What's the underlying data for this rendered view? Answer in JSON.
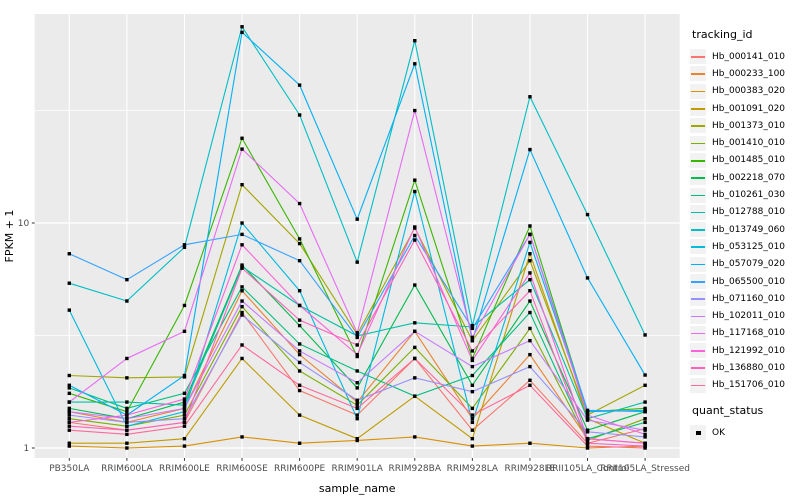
{
  "figure": {
    "background": "#FFFFFF",
    "panel_background": "#EBEBEB",
    "grid_color": "#FFFFFF",
    "axis_text_color": "#4D4D4D",
    "axis_title_color": "#000000",
    "tick_color": "#333333",
    "point_color": "#000000"
  },
  "axes": {
    "x_title": "sample_name",
    "y_title": "FPKM + 1",
    "y_tick_labels": [
      "1",
      "10"
    ]
  },
  "legend": {
    "tracking_title": "tracking_id",
    "quant_title": "quant_status",
    "quant_item_label": "OK",
    "quant_key_icon": "black-square-point"
  },
  "chart_data": {
    "type": "line",
    "title": "",
    "xlabel": "sample_name",
    "ylabel": "FPKM + 1",
    "y_scale": "log10",
    "ylim": [
      1,
      85
    ],
    "y_major_ticks": [
      1,
      10
    ],
    "y_minor_gridlines": [
      3.162,
      31.62
    ],
    "grid": true,
    "legend_position": "right",
    "point_marker": "filled-black-square",
    "categories": [
      "PB350LA",
      "RRIM600LA",
      "RRIM600LE",
      "RRIM600SE",
      "RRIM600PE",
      "RRIM901LA",
      "RRIM928BA",
      "RRIM928LA",
      "RRIM928LE",
      "RRII105LA_Control",
      "RRII105LA_Stressed"
    ],
    "series": [
      {
        "name": "Hb_000141_010",
        "color": "#F8766D",
        "values": [
          1.3,
          1.2,
          1.3,
          4.0,
          1.8,
          1.4,
          2.5,
          1.2,
          2.0,
          1.05,
          1.22
        ]
      },
      {
        "name": "Hb_000233_100",
        "color": "#EA8331",
        "values": [
          1.45,
          1.3,
          1.5,
          5.0,
          2.6,
          1.6,
          3.3,
          1.35,
          2.6,
          1.1,
          1.05
        ]
      },
      {
        "name": "Hb_000383_020",
        "color": "#D89000",
        "values": [
          1.02,
          1.0,
          1.02,
          1.12,
          1.05,
          1.08,
          1.12,
          1.02,
          1.05,
          1.0,
          1.02
        ]
      },
      {
        "name": "Hb_001091_020",
        "color": "#C09B00",
        "values": [
          1.05,
          1.05,
          1.1,
          2.5,
          1.4,
          1.1,
          1.7,
          1.1,
          7.3,
          1.35,
          1.05
        ]
      },
      {
        "name": "Hb_001373_010",
        "color": "#A3A500",
        "values": [
          2.1,
          2.05,
          2.07,
          14.8,
          8.1,
          3.2,
          9.5,
          3.0,
          6.8,
          1.4,
          1.9
        ]
      },
      {
        "name": "Hb_001410_010",
        "color": "#7CAE00",
        "values": [
          1.35,
          1.25,
          1.4,
          4.25,
          2.2,
          1.55,
          2.8,
          1.5,
          3.4,
          1.08,
          1.35
        ]
      },
      {
        "name": "Hb_001485_010",
        "color": "#39B600",
        "values": [
          1.75,
          1.45,
          4.3,
          23.8,
          8.5,
          2.55,
          15.5,
          2.5,
          9.7,
          1.45,
          1.5
        ]
      },
      {
        "name": "Hb_002218_070",
        "color": "#00BB4E",
        "values": [
          1.5,
          1.35,
          1.6,
          6.5,
          3.5,
          1.85,
          5.3,
          1.9,
          4.5,
          1.2,
          1.45
        ]
      },
      {
        "name": "Hb_010261_030",
        "color": "#00BF7D",
        "values": [
          1.85,
          1.5,
          1.75,
          5.2,
          2.9,
          2.2,
          1.7,
          2.1,
          4.0,
          1.1,
          1.3
        ]
      },
      {
        "name": "Hb_012788_010",
        "color": "#00C1A3",
        "values": [
          1.6,
          1.6,
          1.55,
          6.4,
          4.3,
          3.15,
          3.6,
          3.45,
          5.6,
          1.35,
          1.6
        ]
      },
      {
        "name": "Hb_013749_060",
        "color": "#00BFC4",
        "values": [
          5.4,
          4.5,
          7.8,
          74.5,
          30.2,
          6.7,
          64.6,
          3.5,
          36.4,
          10.9,
          3.18
        ]
      },
      {
        "name": "Hb_053125_010",
        "color": "#00BAE0",
        "values": [
          4.1,
          1.25,
          1.45,
          10.0,
          5.0,
          1.35,
          13.8,
          1.3,
          8.2,
          1.45,
          1.47
        ]
      },
      {
        "name": "Hb_057079_020",
        "color": "#00B0F6",
        "values": [
          1.9,
          1.4,
          2.1,
          70.4,
          41.0,
          10.4,
          51.0,
          3.0,
          21.2,
          5.7,
          2.11
        ]
      },
      {
        "name": "Hb_065500_010",
        "color": "#35A2FF",
        "values": [
          7.3,
          5.6,
          8.0,
          8.9,
          6.8,
          3.1,
          8.8,
          3.4,
          8.9,
          1.47,
          1.45
        ]
      },
      {
        "name": "Hb_071160_010",
        "color": "#9590FF",
        "values": [
          1.4,
          1.3,
          1.35,
          3.9,
          2.4,
          1.63,
          2.05,
          1.78,
          2.3,
          1.18,
          1.12
        ]
      },
      {
        "name": "Hb_102011_010",
        "color": "#C77CFF",
        "values": [
          1.45,
          1.35,
          1.5,
          4.5,
          2.7,
          1.95,
          3.3,
          2.3,
          3.0,
          1.33,
          1.2
        ]
      },
      {
        "name": "Hb_117168_010",
        "color": "#E76BF3",
        "values": [
          1.6,
          2.5,
          3.3,
          21.3,
          12.2,
          3.25,
          31.6,
          3.1,
          8.9,
          1.4,
          1.15
        ]
      },
      {
        "name": "Hb_121992_010",
        "color": "#FA62DB",
        "values": [
          1.3,
          1.4,
          1.65,
          8.0,
          4.3,
          2.6,
          9.6,
          2.45,
          6.0,
          1.1,
          1.05
        ]
      },
      {
        "name": "Hb_136880_010",
        "color": "#FF62BC",
        "values": [
          1.25,
          1.2,
          1.3,
          6.3,
          3.7,
          2.87,
          8.4,
          2.7,
          5.0,
          1.05,
          1.02
        ]
      },
      {
        "name": "Hb_151706_010",
        "color": "#FF6A98",
        "values": [
          1.2,
          1.15,
          1.25,
          2.87,
          1.9,
          1.5,
          2.5,
          1.4,
          1.9,
          1.02,
          1.0
        ]
      }
    ]
  }
}
